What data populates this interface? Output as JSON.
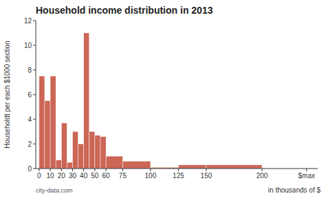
{
  "chart_data": {
    "type": "histogram",
    "title": "Household income distribution in 2013",
    "ylabel": "Householdt per each $1000 section",
    "xlabel": "in thousands of $",
    "annotations": [
      "city-data.com"
    ],
    "bins": [
      0,
      5,
      10,
      15,
      20,
      25,
      30,
      35,
      40,
      45,
      50,
      55,
      60,
      75,
      100,
      125,
      150,
      200
    ],
    "values": [
      7.5,
      5.5,
      7.5,
      0.7,
      3.7,
      0.5,
      3.0,
      2.0,
      11.0,
      3.0,
      2.7,
      2.6,
      1.0,
      0.6,
      0.1,
      0.3,
      0.3
    ],
    "color": "#cc6655",
    "xlim": [
      -3,
      250
    ],
    "xticks": [
      0,
      10,
      20,
      30,
      40,
      50,
      60,
      75,
      100,
      125,
      150,
      200,
      {
        "value": 240,
        "label": "$max"
      }
    ],
    "ylim": [
      0,
      12
    ],
    "yticks": [
      0,
      2,
      4,
      6,
      8,
      10,
      12
    ],
    "grid": false
  }
}
